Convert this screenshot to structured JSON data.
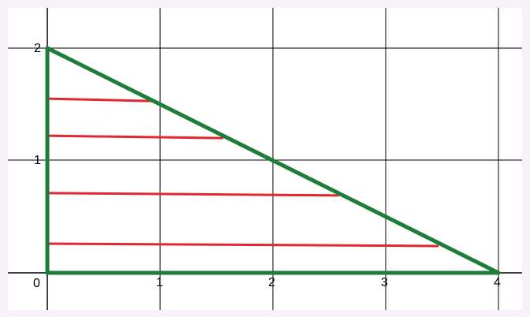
{
  "diagram": {
    "x_ticks": [
      "0",
      "1",
      "2",
      "3",
      "4"
    ],
    "y_ticks": [
      "1",
      "2"
    ],
    "xlim": [
      0,
      4
    ],
    "ylim": [
      0,
      2
    ],
    "grid": true,
    "colors": {
      "triangle": "#1e7d3a",
      "slices": "#e0282e",
      "background": "#f7f2f8",
      "panel": "#ffffff"
    },
    "triangle": {
      "vertices": [
        [
          0,
          0
        ],
        [
          4,
          0
        ],
        [
          0,
          2
        ]
      ]
    },
    "horizontal_slices": [
      {
        "y": 1.55,
        "x_end": 0.92
      },
      {
        "y": 1.22,
        "x_end": 1.55
      },
      {
        "y": 0.71,
        "x_end": 2.58
      },
      {
        "y": 0.26,
        "x_end": 3.46
      }
    ]
  }
}
